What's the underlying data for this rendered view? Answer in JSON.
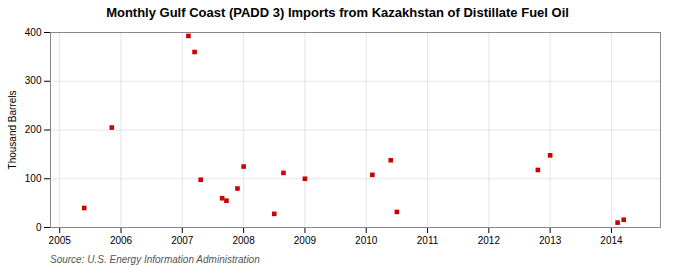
{
  "chart_data": {
    "type": "scatter",
    "title": "Monthly Gulf Coast (PADD 3) Imports from Kazakhstan of Distillate Fuel Oil",
    "ylabel": "Thousand Barrels",
    "annotations": [
      "Source: U.S. Energy Information Administration"
    ],
    "x": [
      2005.4,
      2005.85,
      2007.1,
      2007.2,
      2007.3,
      2007.65,
      2007.72,
      2007.9,
      2008.0,
      2008.5,
      2008.65,
      2009.0,
      2010.1,
      2010.4,
      2010.5,
      2012.8,
      2013.0,
      2014.1,
      2014.2
    ],
    "values": [
      40,
      205,
      393,
      360,
      98,
      60,
      55,
      80,
      125,
      28,
      112,
      100,
      108,
      138,
      32,
      118,
      148,
      10,
      16
    ],
    "color": "#cc0000",
    "marker": "square",
    "xlim": [
      2004.85,
      2014.8
    ],
    "xticks": [
      2005,
      2006,
      2007,
      2008,
      2009,
      2010,
      2011,
      2012,
      2013,
      2014
    ],
    "ylim": [
      0,
      400
    ],
    "yticks": [
      0,
      100,
      200,
      300,
      400
    ],
    "grid": true
  }
}
